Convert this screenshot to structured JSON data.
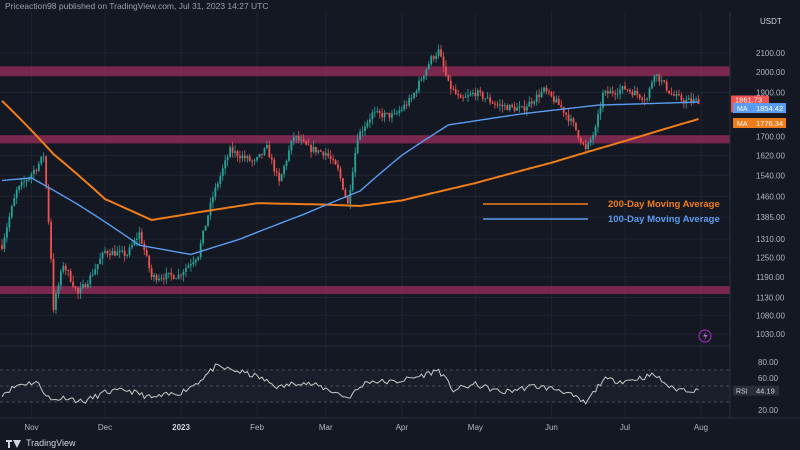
{
  "header": {
    "text": "Priceaction98 published on TradingView.com, Jul 31, 2023 14:27 UTC"
  },
  "brand": {
    "name": "TradingView"
  },
  "currency": "USDT",
  "colors": {
    "bg": "#141823",
    "up": "#26a69a",
    "down": "#ef5350",
    "zone": "#8b2a55",
    "ma200": "#ef7d1a",
    "ma100": "#5b9cf0",
    "rsi": "#c8c8c8",
    "grid": "#1f2433"
  },
  "chart_data": [
    {
      "type": "line",
      "series_type": "candlestick",
      "ylim": [
        1000,
        2200
      ],
      "y_scale": "log",
      "y_ticks": [
        "2100.00",
        "2000.00",
        "1900.00",
        "1700.00",
        "1620.00",
        "1540.00",
        "1460.00",
        "1385.00",
        "1310.00",
        "1250.00",
        "1190.00",
        "1130.00",
        "1080.00",
        "1030.00"
      ],
      "x_ticks": [
        "Nov",
        "Dec",
        "2023",
        "Feb",
        "Mar",
        "Apr",
        "May",
        "Jun",
        "Jul",
        "Aug"
      ],
      "x_start": "2022-10-20",
      "x_end": "2023-08-12",
      "price_anchors": [
        [
          "2022-10-20",
          1290
        ],
        [
          "2022-10-26",
          1480
        ],
        [
          "2022-11-03",
          1570
        ],
        [
          "2022-11-06",
          1620
        ],
        [
          "2022-11-09",
          1250
        ],
        [
          "2022-11-10",
          1100
        ],
        [
          "2022-11-14",
          1230
        ],
        [
          "2022-11-20",
          1140
        ],
        [
          "2022-11-25",
          1190
        ],
        [
          "2022-12-01",
          1270
        ],
        [
          "2022-12-10",
          1260
        ],
        [
          "2022-12-15",
          1330
        ],
        [
          "2022-12-20",
          1190
        ],
        [
          "2022-12-31",
          1195
        ],
        [
          "2023-01-08",
          1260
        ],
        [
          "2023-01-14",
          1460
        ],
        [
          "2023-01-21",
          1640
        ],
        [
          "2023-01-31",
          1590
        ],
        [
          "2023-02-05",
          1650
        ],
        [
          "2023-02-10",
          1510
        ],
        [
          "2023-02-16",
          1700
        ],
        [
          "2023-02-22",
          1650
        ],
        [
          "2023-03-01",
          1630
        ],
        [
          "2023-03-06",
          1560
        ],
        [
          "2023-03-10",
          1430
        ],
        [
          "2023-03-14",
          1700
        ],
        [
          "2023-03-20",
          1800
        ],
        [
          "2023-03-29",
          1790
        ],
        [
          "2023-04-05",
          1870
        ],
        [
          "2023-04-13",
          2070
        ],
        [
          "2023-04-16",
          2110
        ],
        [
          "2023-04-20",
          1940
        ],
        [
          "2023-04-25",
          1860
        ],
        [
          "2023-05-01",
          1900
        ],
        [
          "2023-05-10",
          1840
        ],
        [
          "2023-05-20",
          1820
        ],
        [
          "2023-05-29",
          1910
        ],
        [
          "2023-06-05",
          1830
        ],
        [
          "2023-06-10",
          1750
        ],
        [
          "2023-06-15",
          1640
        ],
        [
          "2023-06-19",
          1730
        ],
        [
          "2023-06-22",
          1890
        ],
        [
          "2023-07-01",
          1920
        ],
        [
          "2023-07-10",
          1870
        ],
        [
          "2023-07-13",
          2000
        ],
        [
          "2023-07-20",
          1890
        ],
        [
          "2023-07-25",
          1860
        ],
        [
          "2023-07-31",
          1861
        ]
      ],
      "horizontal_zones": [
        {
          "from": 1980,
          "to": 2030
        },
        {
          "from": 1670,
          "to": 1705
        },
        {
          "from": 1140,
          "to": 1163
        }
      ],
      "series": [
        {
          "name": "200-Day Moving Average",
          "anchors": [
            [
              "2022-10-20",
              1860
            ],
            [
              "2022-11-10",
              1625
            ],
            [
              "2022-12-01",
              1450
            ],
            [
              "2022-12-20",
              1375
            ],
            [
              "2023-01-10",
              1405
            ],
            [
              "2023-02-01",
              1435
            ],
            [
              "2023-03-01",
              1430
            ],
            [
              "2023-03-15",
              1425
            ],
            [
              "2023-04-01",
              1445
            ],
            [
              "2023-05-01",
              1510
            ],
            [
              "2023-06-01",
              1590
            ],
            [
              "2023-07-01",
              1680
            ],
            [
              "2023-07-31",
              1776.34
            ]
          ]
        },
        {
          "name": "100-Day Moving Average",
          "anchors": [
            [
              "2022-10-20",
              1520
            ],
            [
              "2022-11-01",
              1530
            ],
            [
              "2022-11-20",
              1430
            ],
            [
              "2022-12-15",
              1290
            ],
            [
              "2023-01-05",
              1260
            ],
            [
              "2023-01-25",
              1310
            ],
            [
              "2023-02-20",
              1395
            ],
            [
              "2023-03-15",
              1480
            ],
            [
              "2023-04-01",
              1620
            ],
            [
              "2023-04-20",
              1750
            ],
            [
              "2023-05-20",
              1800
            ],
            [
              "2023-06-20",
              1840
            ],
            [
              "2023-07-31",
              1854.42
            ]
          ]
        }
      ],
      "price_labels": {
        "last": "1861.73",
        "countdown": "09:32:20",
        "ma100": "1854.42",
        "ma200": "1776.34",
        "ma_tag": "MA"
      },
      "legend": [
        {
          "name": "200-Day Moving Average"
        },
        {
          "name": "100-Day Moving Average"
        }
      ]
    },
    {
      "type": "line",
      "name": "RSI",
      "ylim": [
        10,
        95
      ],
      "y_ticks": [
        "80.00",
        "60.00",
        "20.00"
      ],
      "reference_lines": [
        70,
        30,
        50
      ],
      "last_value": "44.19",
      "anchors": [
        [
          "2022-10-20",
          40
        ],
        [
          "2022-10-27",
          52
        ],
        [
          "2022-11-03",
          55
        ],
        [
          "2022-11-09",
          32
        ],
        [
          "2022-11-15",
          36
        ],
        [
          "2022-11-22",
          30
        ],
        [
          "2022-12-01",
          42
        ],
        [
          "2022-12-10",
          45
        ],
        [
          "2022-12-20",
          35
        ],
        [
          "2023-01-01",
          42
        ],
        [
          "2023-01-08",
          55
        ],
        [
          "2023-01-15",
          74
        ],
        [
          "2023-01-22",
          70
        ],
        [
          "2023-02-01",
          62
        ],
        [
          "2023-02-10",
          48
        ],
        [
          "2023-02-18",
          55
        ],
        [
          "2023-02-26",
          50
        ],
        [
          "2023-03-05",
          42
        ],
        [
          "2023-03-10",
          35
        ],
        [
          "2023-03-18",
          56
        ],
        [
          "2023-03-29",
          55
        ],
        [
          "2023-04-08",
          62
        ],
        [
          "2023-04-16",
          70
        ],
        [
          "2023-04-22",
          45
        ],
        [
          "2023-05-01",
          52
        ],
        [
          "2023-05-12",
          42
        ],
        [
          "2023-05-25",
          50
        ],
        [
          "2023-06-05",
          45
        ],
        [
          "2023-06-15",
          28
        ],
        [
          "2023-06-22",
          58
        ],
        [
          "2023-07-01",
          56
        ],
        [
          "2023-07-13",
          64
        ],
        [
          "2023-07-20",
          47
        ],
        [
          "2023-07-31",
          44
        ]
      ]
    }
  ]
}
